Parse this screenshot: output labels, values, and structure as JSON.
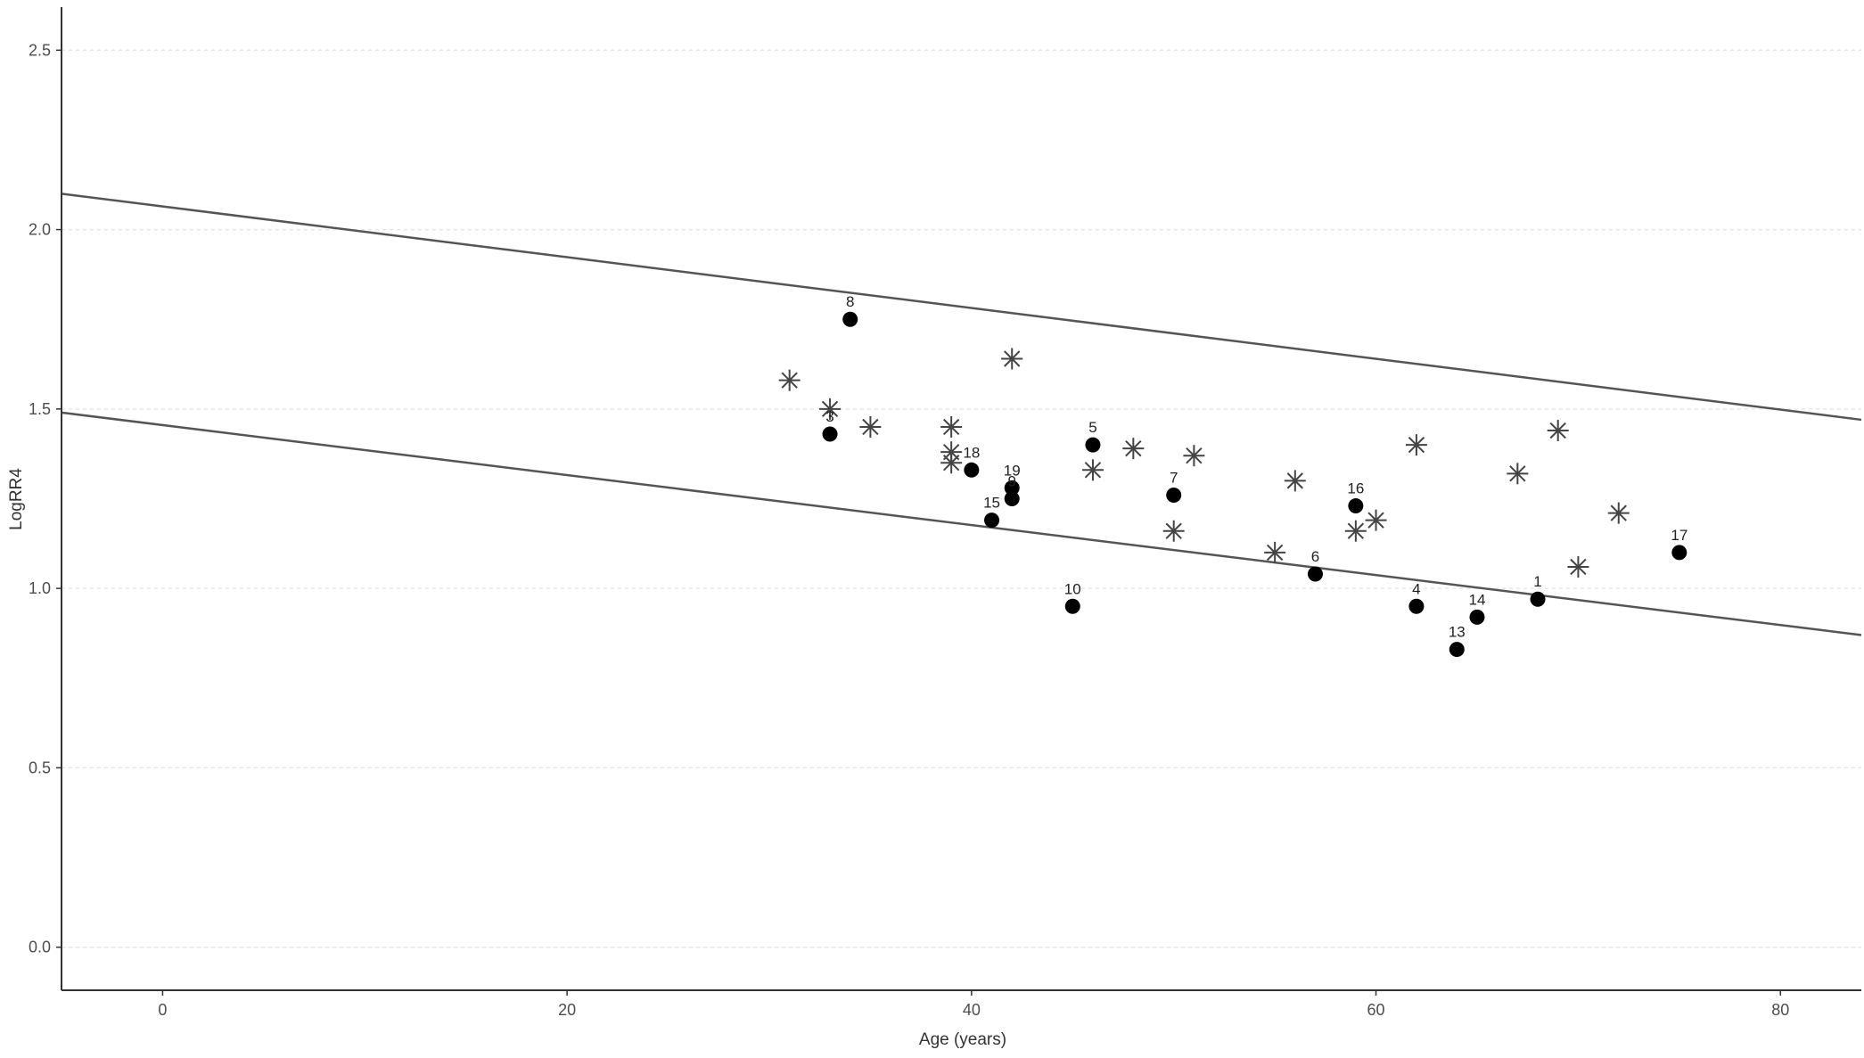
{
  "chart_data": {
    "type": "scatter",
    "title": "",
    "xlabel": "Age (years)",
    "ylabel": "LogRR4",
    "xlim": [
      -5,
      84
    ],
    "ylim": [
      -0.12,
      2.62
    ],
    "x_ticks": [
      0,
      20,
      40,
      60,
      80
    ],
    "y_ticks": [
      0.0,
      0.5,
      1.0,
      1.5,
      2.0,
      2.5
    ],
    "x_tick_labels": [
      "0",
      "20",
      "40",
      "60",
      "80"
    ],
    "y_tick_labels": [
      "0.0",
      "0.5",
      "1.0",
      "1.5",
      "2.0",
      "2.5"
    ],
    "grid": "horizontal dotted",
    "colors": {
      "points": "#000000",
      "stars": "#444444",
      "lines": "#555555",
      "axis": "#333333"
    },
    "lines": [
      {
        "x": [
          -5,
          84
        ],
        "y": [
          2.1,
          1.47
        ]
      },
      {
        "x": [
          -5,
          84
        ],
        "y": [
          1.49,
          0.87
        ]
      }
    ],
    "series": [
      {
        "marker": "filled-circle",
        "points": [
          {
            "x": 34,
            "y": 1.75,
            "label": "8"
          },
          {
            "x": 33,
            "y": 1.43,
            "label": "3"
          },
          {
            "x": 40,
            "y": 1.33,
            "label": "18"
          },
          {
            "x": 42,
            "y": 1.28,
            "label": "19"
          },
          {
            "x": 42,
            "y": 1.25,
            "label": "9"
          },
          {
            "x": 41,
            "y": 1.19,
            "label": "15"
          },
          {
            "x": 46,
            "y": 1.4,
            "label": "5"
          },
          {
            "x": 45,
            "y": 0.95,
            "label": "10"
          },
          {
            "x": 50,
            "y": 1.26,
            "label": "7"
          },
          {
            "x": 57,
            "y": 1.04,
            "label": "6"
          },
          {
            "x": 59,
            "y": 1.23,
            "label": "16"
          },
          {
            "x": 62,
            "y": 0.95,
            "label": "4"
          },
          {
            "x": 65,
            "y": 0.92,
            "label": "14"
          },
          {
            "x": 64,
            "y": 0.83,
            "label": "13"
          },
          {
            "x": 68,
            "y": 0.97,
            "label": "1"
          },
          {
            "x": 75,
            "y": 1.1,
            "label": "17"
          }
        ]
      },
      {
        "marker": "asterisk",
        "points": [
          {
            "x": 31,
            "y": 1.58
          },
          {
            "x": 33,
            "y": 1.5
          },
          {
            "x": 35,
            "y": 1.45
          },
          {
            "x": 39,
            "y": 1.45
          },
          {
            "x": 39,
            "y": 1.38
          },
          {
            "x": 39,
            "y": 1.35
          },
          {
            "x": 42,
            "y": 1.64
          },
          {
            "x": 46,
            "y": 1.33
          },
          {
            "x": 48,
            "y": 1.39
          },
          {
            "x": 50,
            "y": 1.16
          },
          {
            "x": 51,
            "y": 1.37
          },
          {
            "x": 55,
            "y": 1.1
          },
          {
            "x": 56,
            "y": 1.3
          },
          {
            "x": 59,
            "y": 1.16
          },
          {
            "x": 60,
            "y": 1.19
          },
          {
            "x": 62,
            "y": 1.4
          },
          {
            "x": 67,
            "y": 1.32
          },
          {
            "x": 69,
            "y": 1.44
          },
          {
            "x": 70,
            "y": 1.06
          },
          {
            "x": 72,
            "y": 1.21
          }
        ]
      }
    ]
  }
}
